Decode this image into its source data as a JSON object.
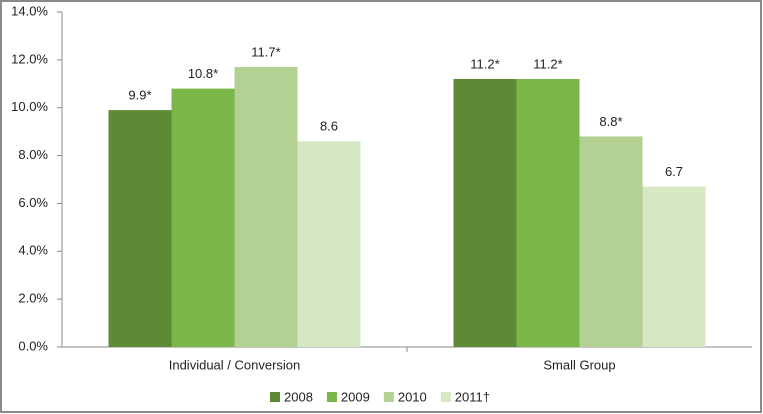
{
  "chart_data": {
    "type": "bar",
    "categories": [
      "Individual / Conversion",
      "Small Group"
    ],
    "series": [
      {
        "name": "2008",
        "color": "#5f8a35",
        "values": [
          9.9,
          11.2
        ],
        "value_labels": [
          "9.9*",
          "11.2*"
        ]
      },
      {
        "name": "2009",
        "color": "#7ab648",
        "values": [
          10.8,
          11.2
        ],
        "value_labels": [
          "10.8*",
          "11.2*"
        ]
      },
      {
        "name": "2010",
        "color": "#b2d193",
        "values": [
          11.7,
          8.8
        ],
        "value_labels": [
          "11.7*",
          "8.8*"
        ]
      },
      {
        "name": "2011†",
        "color": "#d6e7c4",
        "values": [
          8.6,
          6.7
        ],
        "value_labels": [
          "8.6",
          "6.7"
        ]
      }
    ],
    "ylim": [
      0,
      14
    ],
    "yticks": [
      {
        "value": 0,
        "label": "0.0%"
      },
      {
        "value": 2,
        "label": "2.0%"
      },
      {
        "value": 4,
        "label": "4.0%"
      },
      {
        "value": 6,
        "label": "6.0%"
      },
      {
        "value": 8,
        "label": "8.0%"
      },
      {
        "value": 10,
        "label": "10.0%"
      },
      {
        "value": 12,
        "label": "12.0%"
      },
      {
        "value": 14,
        "label": "14.0%"
      }
    ],
    "legend": "bottom"
  }
}
